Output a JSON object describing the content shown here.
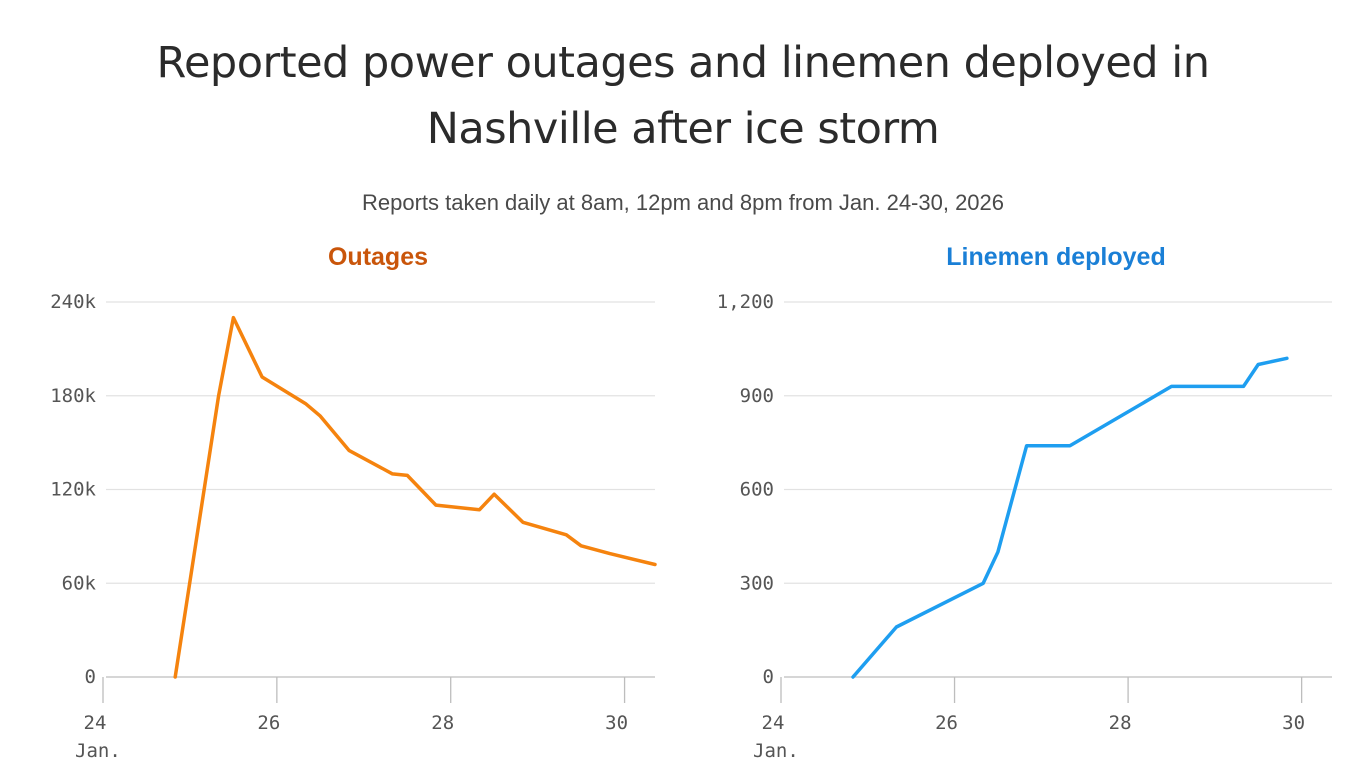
{
  "title_line1": "Reported power outages and linemen deployed in",
  "title_line2": "Nashville after ice storm",
  "subtitle": "Reports taken daily at 8am, 12pm and 8pm from Jan. 24-30, 2026",
  "chart_data": [
    {
      "type": "line",
      "title": "Outages",
      "color": "#f5830e",
      "title_color": "#c9550a",
      "xlim": [
        24,
        30.35
      ],
      "ylim": [
        0,
        240000
      ],
      "xticks": [
        24,
        26,
        28,
        30
      ],
      "xtick_labels": [
        "24",
        "26",
        "28",
        "30"
      ],
      "month_label": "Jan.",
      "yticks": [
        0,
        60000,
        120000,
        180000,
        240000
      ],
      "ytick_labels": [
        "0",
        "60k",
        "120k",
        "180k",
        "240k"
      ],
      "x": [
        24.83,
        25.33,
        25.5,
        25.83,
        26.33,
        26.5,
        26.83,
        27.33,
        27.5,
        27.83,
        28.33,
        28.5,
        28.83,
        29.33,
        29.5,
        29.83,
        30.35
      ],
      "y": [
        0,
        180000,
        230000,
        192000,
        175000,
        167000,
        145000,
        130000,
        129000,
        110000,
        107000,
        117000,
        99000,
        91000,
        84000,
        79000,
        72000
      ]
    },
    {
      "type": "line",
      "title": "Linemen deployed",
      "color": "#1e9ef0",
      "title_color": "#1a7fd6",
      "xlim": [
        24,
        30.35
      ],
      "ylim": [
        0,
        1200
      ],
      "xticks": [
        24,
        26,
        28,
        30
      ],
      "xtick_labels": [
        "24",
        "26",
        "28",
        "30"
      ],
      "month_label": "Jan.",
      "yticks": [
        0,
        300,
        600,
        900,
        1200
      ],
      "ytick_labels": [
        "0",
        "300",
        "600",
        "900",
        "1,200"
      ],
      "x": [
        24.83,
        25.33,
        26.33,
        26.5,
        26.83,
        27.33,
        28.5,
        29.33,
        29.5,
        29.83
      ],
      "y": [
        0,
        160,
        300,
        400,
        740,
        740,
        930,
        930,
        1000,
        1020
      ]
    }
  ]
}
